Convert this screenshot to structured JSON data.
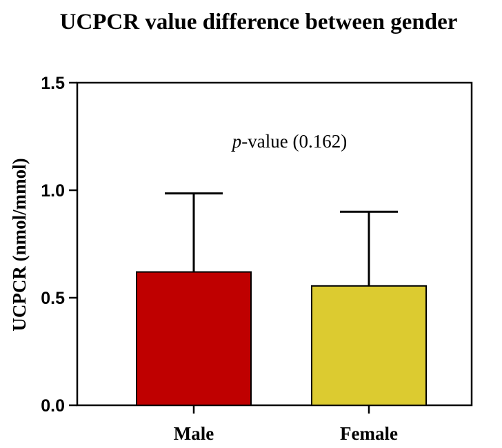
{
  "chart_data": {
    "type": "bar",
    "title": "UCPCR value difference between gender",
    "ylabel": "UCPCR (nmol/mmol)",
    "xlabel": "",
    "ylim": [
      0,
      1.5
    ],
    "yticks": [
      "0.0",
      "0.5",
      "1.0",
      "1.5"
    ],
    "categories": [
      "Male",
      "Female"
    ],
    "values": [
      0.62,
      0.555
    ],
    "error_upper": [
      0.985,
      0.9
    ],
    "colors": [
      "#bf0000",
      "#dccb30"
    ],
    "annotation": {
      "italic_part": "p",
      "rest": "-value (0.162)"
    },
    "grid": false,
    "legend": "none"
  }
}
